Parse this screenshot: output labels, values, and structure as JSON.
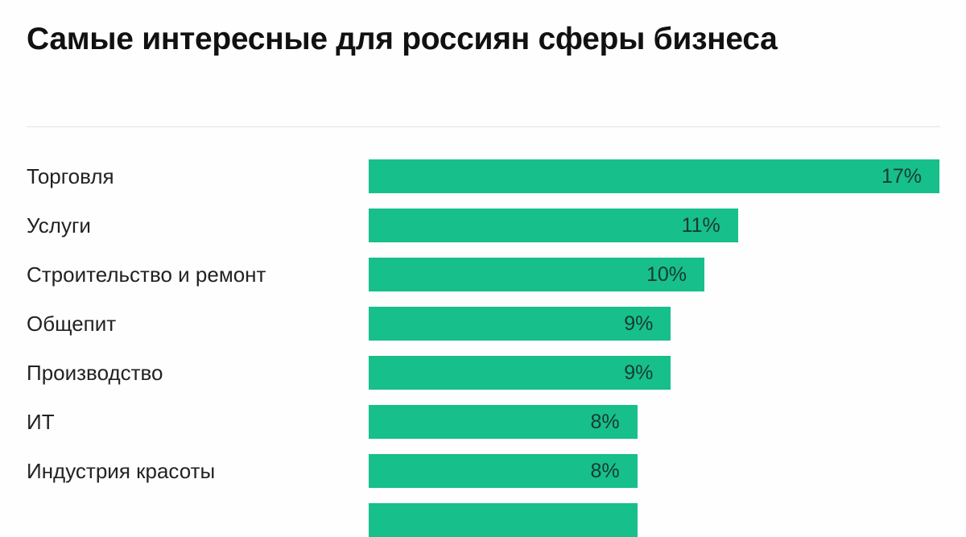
{
  "chart_data": {
    "type": "bar",
    "orientation": "horizontal",
    "title": "Самые интересные для россиян сферы бизнеса",
    "categories": [
      "Торговля",
      "Услуги",
      "Строительство и ремонт",
      "Общепит",
      "Производство",
      "ИТ",
      "Индустрия красоты",
      ""
    ],
    "values": [
      17,
      11,
      10,
      9,
      9,
      8,
      8,
      8
    ],
    "value_labels": [
      "17%",
      "11%",
      "10%",
      "9%",
      "9%",
      "8%",
      "8%",
      ""
    ],
    "unit": "%",
    "xlim": [
      0,
      17
    ],
    "grid": false,
    "legend": "none",
    "colors": {
      "bar": "#17bf8a",
      "text": "#173b30",
      "title": "#111111"
    }
  }
}
